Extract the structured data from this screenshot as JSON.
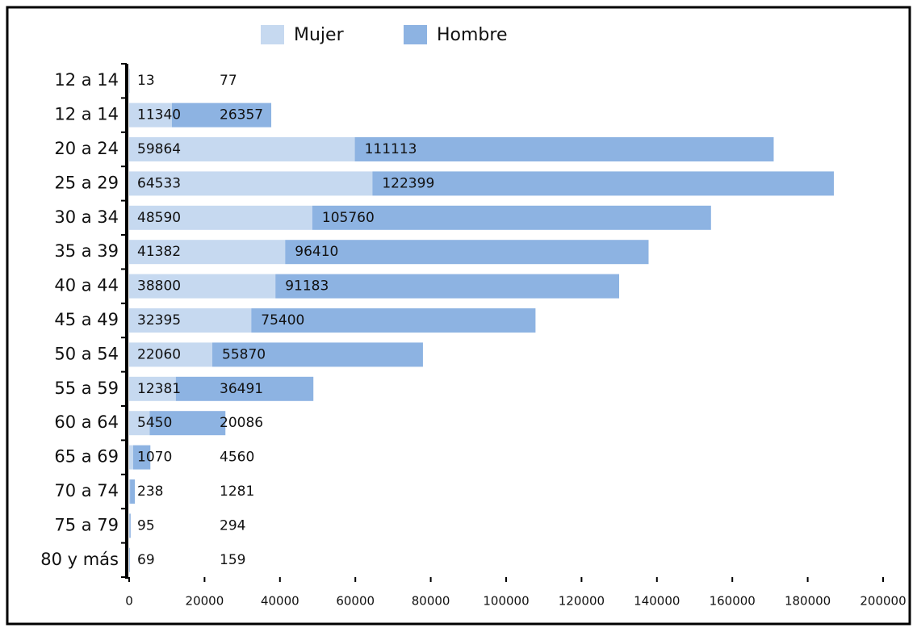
{
  "chart_data": {
    "type": "bar",
    "orientation": "horizontal",
    "stacked": true,
    "categories": [
      "12 a 14",
      "12 a 14",
      "20 a 24",
      "25 a 29",
      "30 a 34",
      "35 a 39",
      "40 a 44",
      "45 a 49",
      "50 a 54",
      "55 a 59",
      "60 a 64",
      "65 a 69",
      "70 a 74",
      "75 a 79",
      "80 y más"
    ],
    "series": [
      {
        "name": "Mujer",
        "color": "#c6d9f0",
        "values": [
          13,
          11340,
          59864,
          64533,
          48590,
          41382,
          38800,
          32395,
          22060,
          12381,
          5450,
          1070,
          238,
          95,
          69
        ]
      },
      {
        "name": "Hombre",
        "color": "#8db3e2",
        "values": [
          77,
          26357,
          111113,
          122399,
          105760,
          96410,
          91183,
          75400,
          55870,
          36491,
          20086,
          4560,
          1281,
          294,
          159
        ]
      }
    ],
    "xlim": [
      0,
      200000
    ],
    "xticks": [
      0,
      20000,
      40000,
      60000,
      80000,
      100000,
      120000,
      140000,
      160000,
      180000,
      200000
    ],
    "legend": "top"
  }
}
